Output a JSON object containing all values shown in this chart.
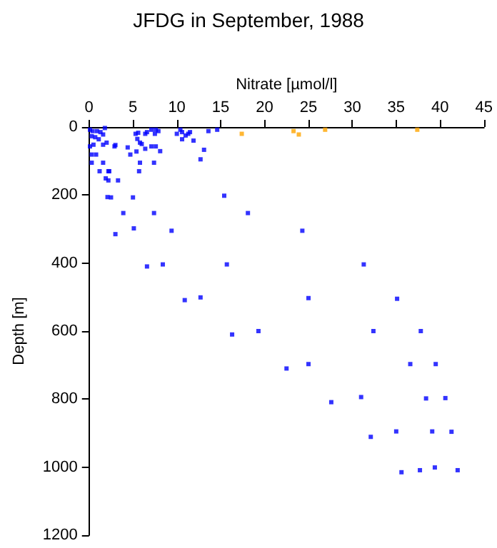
{
  "chart_data": {
    "type": "scatter",
    "title": "JFDG in September, 1988",
    "xlabel": "Nitrate [µmol/l]",
    "ylabel": "Depth [m]",
    "xlim": [
      0,
      45
    ],
    "xticks": [
      0,
      5,
      10,
      15,
      20,
      25,
      30,
      35,
      40,
      45
    ],
    "ylim": [
      1200,
      0
    ],
    "yticks": [
      0,
      200,
      400,
      600,
      800,
      1000,
      1200
    ],
    "grid": false,
    "marker": "square",
    "series": [
      {
        "color": "#0000ff",
        "x": [
          0.1,
          0.4,
          0.9,
          1.3,
          0.3,
          0.7,
          1.1,
          1.6,
          1.8,
          0.1,
          0.5,
          1.6,
          2.0,
          3.0,
          2.9,
          4.4,
          0.3,
          0.8,
          4.7,
          0.3,
          1.6,
          1.2,
          2.2,
          2.3,
          1.9,
          2.2,
          3.3,
          2.1,
          2.5,
          5.0,
          3.9,
          7.4,
          5.1,
          3.0,
          9.4,
          15.4,
          18.1,
          24.3,
          5.3,
          5.6,
          5.5,
          5.8,
          6.4,
          6.6,
          7.1,
          7.6,
          7.5,
          6.0,
          6.4,
          7.1,
          7.6,
          8.1,
          5.4,
          5.8,
          5.7,
          7.4,
          10.0,
          10.4,
          10.6,
          11.0,
          11.3,
          10.6,
          11.5,
          11.9,
          7.9,
          13.6,
          14.6,
          13.1,
          12.7,
          6.6,
          8.4,
          10.9,
          12.7,
          15.7,
          16.3,
          19.3,
          22.5,
          25.0,
          25.0,
          27.6,
          31.3,
          31.0,
          32.4,
          35.1,
          36.6,
          37.8,
          38.4,
          39.5,
          40.6,
          32.1,
          35.0,
          39.1,
          41.3,
          35.6,
          37.7,
          39.4,
          42.0
        ],
        "values": [
          8,
          12,
          12,
          15,
          27,
          30,
          36,
          22,
          3,
          57,
          52,
          52,
          46,
          53,
          57,
          60,
          81,
          81,
          81,
          105,
          105,
          130,
          130,
          130,
          151,
          157,
          157,
          206,
          207,
          207,
          253,
          253,
          298,
          315,
          305,
          202,
          253,
          305,
          20,
          17,
          35,
          46,
          20,
          15,
          8,
          8,
          20,
          50,
          64,
          57,
          57,
          71,
          72,
          105,
          130,
          105,
          20,
          8,
          15,
          25,
          20,
          36,
          15,
          40,
          12,
          12,
          8,
          67,
          95,
          410,
          404,
          509,
          501,
          404,
          610,
          600,
          710,
          503,
          697,
          809,
          404,
          794,
          600,
          505,
          697,
          600,
          798,
          697,
          797,
          911,
          895,
          895,
          896,
          1015,
          1009,
          1001,
          1009
        ]
      },
      {
        "color": "#ffa500",
        "x": [
          17.4,
          23.3,
          23.9,
          26.9,
          37.4
        ],
        "values": [
          20,
          12,
          22,
          8,
          8
        ]
      }
    ]
  }
}
